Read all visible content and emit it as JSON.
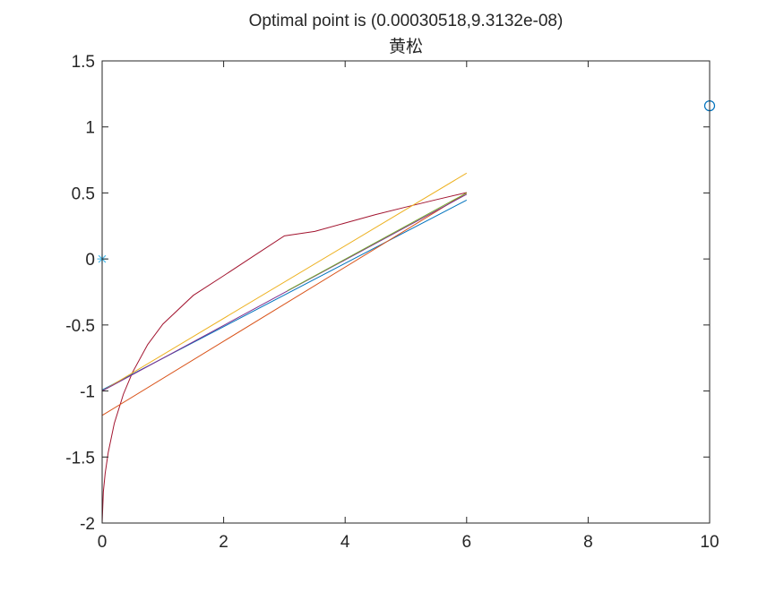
{
  "chart_data": {
    "type": "line",
    "title": "Optimal point is (0.00030518,9.3132e-08)",
    "subtitle": "黄松",
    "xlabel": "",
    "ylabel": "",
    "xlim": [
      0,
      10
    ],
    "ylim": [
      -2,
      1.5
    ],
    "xticks": [
      0,
      2,
      4,
      6,
      8,
      10
    ],
    "xtick_labels": [
      "0",
      "2",
      "4",
      "6",
      "8",
      "10"
    ],
    "yticks": [
      -2,
      -1.5,
      -1,
      -0.5,
      0,
      0.5,
      1,
      1.5
    ],
    "ytick_labels": [
      "-2",
      "-1.5",
      "-1",
      "-0.5",
      "0",
      "0.5",
      "1",
      "1.5"
    ],
    "grid": false,
    "box": true,
    "series": [
      {
        "color": "#a2142f",
        "kind": "curve",
        "x": [
          0,
          0.02,
          0.05,
          0.1,
          0.2,
          0.35,
          0.5,
          0.75,
          1,
          1.5,
          2,
          2.5,
          3,
          3.5,
          4,
          4.5,
          5,
          5.5,
          6
        ],
        "y": [
          -2,
          -1.762,
          -1.623,
          -1.466,
          -1.245,
          -1.024,
          -0.859,
          -0.648,
          -0.493,
          -0.276,
          -0.127,
          0.024,
          0.175,
          0.209,
          0.272,
          0.336,
          0.393,
          0.449,
          0.503
        ]
      },
      {
        "color": "#0072bd",
        "kind": "line",
        "x": [
          0,
          6
        ],
        "y": [
          -0.992,
          0.446
        ]
      },
      {
        "color": "#d95319",
        "kind": "line",
        "x": [
          0,
          6
        ],
        "y": [
          -1.185,
          0.5
        ]
      },
      {
        "color": "#edb120",
        "kind": "line",
        "x": [
          0,
          6
        ],
        "y": [
          -1.0,
          0.65
        ]
      },
      {
        "color": "#7e2f8e",
        "kind": "line",
        "x": [
          0,
          6
        ],
        "y": [
          -1.0,
          0.49
        ]
      },
      {
        "color": "#77ac30",
        "kind": "line",
        "x": [
          3.05,
          6
        ],
        "y": [
          -0.24,
          0.5
        ]
      }
    ],
    "markers": [
      {
        "symbol": "asterisk",
        "color": "#4dbeee",
        "x": 0,
        "y": 0
      },
      {
        "symbol": "circle",
        "color": "#0072bd",
        "x": 10,
        "y": 1.16
      }
    ]
  }
}
